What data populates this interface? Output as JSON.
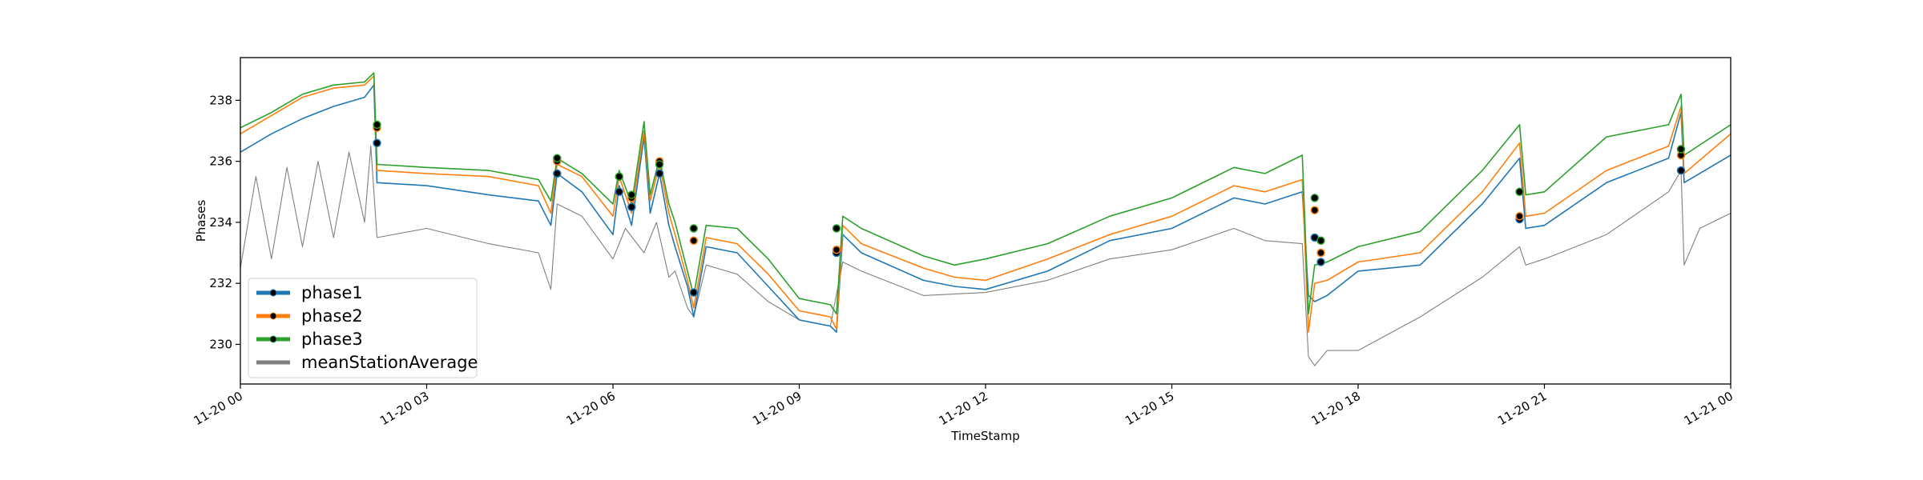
{
  "chart_data": {
    "type": "line",
    "title": "",
    "xlabel": "TimeStamp",
    "ylabel": "Phases",
    "xlim_hours": [
      0,
      24
    ],
    "ylim": [
      228.7,
      239.4
    ],
    "x_ticks": [
      {
        "hour": 0,
        "label": "11-20 00"
      },
      {
        "hour": 3,
        "label": "11-20 03"
      },
      {
        "hour": 6,
        "label": "11-20 06"
      },
      {
        "hour": 9,
        "label": "11-20 09"
      },
      {
        "hour": 12,
        "label": "11-20 12"
      },
      {
        "hour": 15,
        "label": "11-20 15"
      },
      {
        "hour": 18,
        "label": "11-20 18"
      },
      {
        "hour": 21,
        "label": "11-20 21"
      },
      {
        "hour": 24,
        "label": "11-21 00"
      }
    ],
    "y_ticks": [
      230,
      232,
      234,
      236,
      238
    ],
    "grid": false,
    "legend_position": "lower-left",
    "series": [
      {
        "name": "phase1",
        "color": "#1f77b4",
        "x": [
          0,
          0.5,
          1,
          1.5,
          2,
          2.15,
          2.2,
          3,
          4,
          4.8,
          5.0,
          5.1,
          5.5,
          6.0,
          6.1,
          6.3,
          6.5,
          6.6,
          6.75,
          6.9,
          7.0,
          7.2,
          7.3,
          7.5,
          8,
          8.5,
          9,
          9.5,
          9.6,
          9.7,
          10,
          11,
          11.5,
          12,
          13,
          14,
          15,
          16,
          16.5,
          17.1,
          17.2,
          17.3,
          17.5,
          18,
          19,
          20,
          20.6,
          20.7,
          21,
          22,
          23,
          23.2,
          23.25,
          24
        ],
        "y": [
          236.3,
          236.9,
          237.4,
          237.8,
          238.1,
          238.5,
          235.3,
          235.2,
          234.9,
          234.7,
          233.9,
          235.6,
          235.0,
          233.6,
          235.2,
          233.9,
          236.8,
          234.3,
          235.6,
          233.9,
          233.2,
          231.9,
          230.9,
          233.2,
          233.0,
          231.9,
          230.8,
          230.6,
          230.4,
          233.6,
          233.0,
          232.1,
          231.9,
          231.8,
          232.4,
          233.4,
          233.8,
          234.8,
          234.6,
          235.0,
          231.6,
          231.4,
          231.6,
          232.4,
          232.6,
          234.6,
          236.1,
          233.8,
          233.9,
          235.3,
          236.1,
          237.6,
          235.3,
          236.2
        ]
      },
      {
        "name": "phase2",
        "color": "#ff7f0e",
        "x": [
          0,
          0.5,
          1,
          1.5,
          2,
          2.15,
          2.2,
          3,
          4,
          4.8,
          5.0,
          5.1,
          5.5,
          6.0,
          6.1,
          6.3,
          6.5,
          6.6,
          6.75,
          6.9,
          7.0,
          7.2,
          7.3,
          7.5,
          8,
          8.5,
          9,
          9.5,
          9.6,
          9.7,
          10,
          11,
          11.5,
          12,
          13,
          14,
          15,
          16,
          16.5,
          17.1,
          17.2,
          17.3,
          17.5,
          18,
          19,
          20,
          20.6,
          20.7,
          21,
          22,
          23,
          23.2,
          23.25,
          24
        ],
        "y": [
          236.9,
          237.5,
          238.1,
          238.4,
          238.5,
          238.8,
          235.7,
          235.6,
          235.5,
          235.2,
          234.3,
          235.9,
          235.5,
          234.2,
          235.5,
          234.3,
          237.0,
          234.7,
          235.9,
          234.3,
          233.6,
          232.1,
          231.2,
          233.5,
          233.3,
          232.3,
          231.1,
          230.9,
          230.5,
          233.9,
          233.3,
          232.5,
          232.2,
          232.1,
          232.8,
          233.6,
          234.2,
          235.2,
          235.0,
          235.4,
          230.4,
          232.0,
          232.1,
          232.7,
          233.0,
          235.0,
          236.6,
          234.2,
          234.3,
          235.7,
          236.5,
          237.8,
          235.6,
          236.9
        ]
      },
      {
        "name": "phase3",
        "color": "#2ca02c",
        "x": [
          0,
          0.5,
          1,
          1.5,
          2,
          2.15,
          2.2,
          3,
          4,
          4.8,
          5.0,
          5.1,
          5.5,
          6.0,
          6.1,
          6.3,
          6.5,
          6.6,
          6.75,
          6.9,
          7.0,
          7.2,
          7.3,
          7.5,
          8,
          8.5,
          9,
          9.5,
          9.6,
          9.7,
          10,
          11,
          11.5,
          12,
          13,
          14,
          15,
          16,
          16.5,
          17.1,
          17.2,
          17.3,
          17.5,
          18,
          19,
          20,
          20.6,
          20.7,
          21,
          22,
          23,
          23.2,
          23.25,
          24
        ],
        "y": [
          237.1,
          237.6,
          238.2,
          238.5,
          238.6,
          238.9,
          235.9,
          235.8,
          235.7,
          235.4,
          234.7,
          236.1,
          235.6,
          234.6,
          235.7,
          234.6,
          237.3,
          234.9,
          236.1,
          234.6,
          234.0,
          232.4,
          231.6,
          233.9,
          233.8,
          232.8,
          231.5,
          231.3,
          231.0,
          234.2,
          233.8,
          232.9,
          232.6,
          232.8,
          233.3,
          234.2,
          234.8,
          235.8,
          235.6,
          236.2,
          231.0,
          232.6,
          232.7,
          233.2,
          233.7,
          235.7,
          237.2,
          234.9,
          235.0,
          236.8,
          237.2,
          238.2,
          236.2,
          237.2
        ]
      },
      {
        "name": "meanStationAverage",
        "color": "#808080",
        "x": [
          0,
          0.25,
          0.5,
          0.75,
          1,
          1.25,
          1.5,
          1.75,
          2,
          2.1,
          2.2,
          3,
          4,
          4.8,
          5.0,
          5.1,
          5.5,
          6.0,
          6.2,
          6.5,
          6.7,
          6.9,
          7.0,
          7.2,
          7.3,
          7.5,
          8,
          8.5,
          9,
          9.5,
          9.7,
          10,
          11,
          12,
          13,
          14,
          15,
          16,
          16.5,
          17.1,
          17.2,
          17.3,
          17.5,
          18,
          19,
          20,
          20.6,
          20.7,
          21,
          22,
          23,
          23.2,
          23.25,
          23.5,
          24
        ],
        "y": [
          232.5,
          235.5,
          232.8,
          235.8,
          233.2,
          236.0,
          233.5,
          236.3,
          234.0,
          236.5,
          233.5,
          233.8,
          233.3,
          233.0,
          231.8,
          234.6,
          234.2,
          232.8,
          233.8,
          233.0,
          234.0,
          232.2,
          232.4,
          231.2,
          230.9,
          232.6,
          232.3,
          231.4,
          230.8,
          230.6,
          232.7,
          232.4,
          231.6,
          231.7,
          232.1,
          232.8,
          233.1,
          233.8,
          233.4,
          233.3,
          229.6,
          229.3,
          229.8,
          229.8,
          230.9,
          232.2,
          233.2,
          232.6,
          232.8,
          233.6,
          235.0,
          235.7,
          232.6,
          233.8,
          234.3
        ]
      }
    ],
    "event_markers": {
      "phase1": {
        "x": [
          2.2,
          5.1,
          6.1,
          6.3,
          6.75,
          7.3,
          9.6,
          17.3,
          17.4,
          20.6,
          23.2
        ],
        "y": [
          236.6,
          235.6,
          235.0,
          234.5,
          235.6,
          231.7,
          233.0,
          233.5,
          232.7,
          234.1,
          235.7
        ]
      },
      "phase2": {
        "x": [
          2.2,
          5.1,
          6.1,
          6.3,
          6.75,
          7.3,
          9.6,
          17.3,
          17.4,
          20.6,
          23.2
        ],
        "y": [
          237.1,
          236.0,
          235.5,
          234.8,
          236.0,
          233.4,
          233.1,
          234.4,
          233.0,
          234.2,
          236.2
        ]
      },
      "phase3": {
        "x": [
          2.2,
          5.1,
          6.1,
          6.3,
          6.75,
          7.3,
          9.6,
          17.3,
          17.4,
          20.6,
          23.2
        ],
        "y": [
          237.2,
          236.1,
          235.5,
          234.9,
          235.9,
          233.8,
          233.8,
          234.8,
          233.4,
          235.0,
          236.4
        ]
      }
    }
  }
}
